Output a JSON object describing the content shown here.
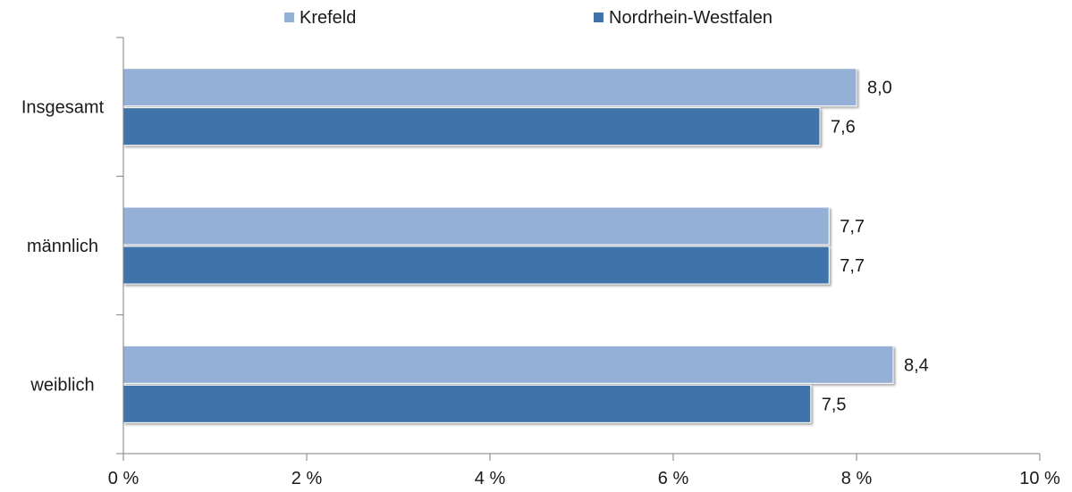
{
  "chart_data": {
    "type": "bar",
    "orientation": "horizontal",
    "categories": [
      "Insgesamt",
      "männlich",
      "weiblich"
    ],
    "series": [
      {
        "name": "Krefeld",
        "values": [
          8.0,
          7.7,
          8.4
        ],
        "labels": [
          "8,0",
          "7,7",
          "8,4"
        ],
        "color": "#95b0d6"
      },
      {
        "name": "Nordrhein-Westfalen",
        "values": [
          7.6,
          7.7,
          7.5
        ],
        "labels": [
          "7,6",
          "7,7",
          "7,5"
        ],
        "color": "#3f73a9"
      }
    ],
    "xlim": [
      0,
      10
    ],
    "xticks": [
      0,
      2,
      4,
      6,
      8,
      10
    ],
    "xtick_labels": [
      "0 %",
      "2 %",
      "4 %",
      "6 %",
      "8 %",
      "10 %"
    ],
    "legend_position": "top",
    "grid": false
  }
}
